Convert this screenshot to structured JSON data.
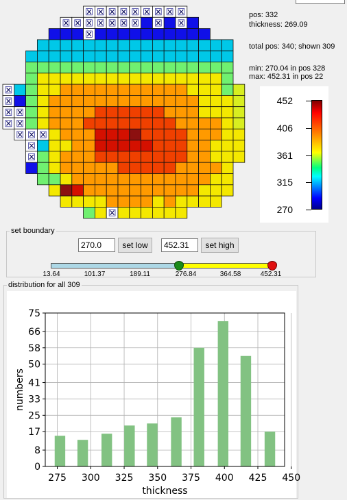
{
  "info": {
    "pos": "pos: 332",
    "thickness": "thickness: 269.09",
    "total": "total pos: 340; shown 309",
    "min": "min: 270.04 in pos 328",
    "max": "max: 452.31 in pos 22"
  },
  "legend": {
    "labels": [
      "452",
      "406",
      "361",
      "315",
      "270"
    ],
    "max": 452.31,
    "min": 270.04
  },
  "wafer": {
    "rows": [
      {
        "start": 7,
        "cells": "XXXXXXXXX"
      },
      {
        "start": 5,
        "cells": "XXXXXXXbXbXb"
      },
      {
        "start": 4,
        "cells": "bbbXbbbbbbbbbb"
      },
      {
        "start": 3,
        "cells": "ccccccccccccccccc"
      },
      {
        "start": 2,
        "cells": "cccccccccccccccccc"
      },
      {
        "start": 2,
        "cells": "gggggggggggggggggg"
      },
      {
        "start": 2,
        "cells": "gyyyyyyyyyyyyyyyyg"
      },
      {
        "start": 0,
        "cells": "XcgyyoooooooooooyyygY"
      },
      {
        "start": 0,
        "cells": "XbgyoooooooooooooyyyY"
      },
      {
        "start": 0,
        "cells": "XXgyoooorrrrrroooyyyY"
      },
      {
        "start": 0,
        "cells": "XXgyooorrrrrrrrooooyY"
      },
      {
        "start": 1,
        "cells": "XXXyoooRRRDrrrroooyy"
      },
      {
        "start": 2,
        "cells": "XcyyooRRRRRrrrooyyy"
      },
      {
        "start": 2,
        "cells": "Xgyooorrrrrrrrooyyy"
      },
      {
        "start": 2,
        "cells": "bgyooooorrrrrooooy"
      },
      {
        "start": 3,
        "cells": "ggyooooooooooooyy"
      },
      {
        "start": 4,
        "cells": "yDRooooooooooyyy"
      },
      {
        "start": 5,
        "cells": "yyyyooooyoyyyy"
      },
      {
        "start": 7,
        "cells": "gyXyyyyyy"
      }
    ]
  },
  "boundary": {
    "legend": "set boundary",
    "low_value": "270.0",
    "set_low": "set low",
    "high_value": "452.31",
    "set_high": "set high",
    "slider_labels": [
      "13.64",
      "101.37",
      "189.11",
      "276.84",
      "364.58",
      "452.31"
    ],
    "low_thumb_fraction": 0.568,
    "high_thumb_fraction": 1.0
  },
  "distribution": {
    "legend": "distribution for all 309"
  },
  "chart_data": {
    "type": "bar",
    "categories": [
      275,
      300,
      325,
      350,
      375,
      400,
      425,
      450
    ],
    "bars": [
      {
        "x": 277,
        "value": 15
      },
      {
        "x": 294,
        "value": 13
      },
      {
        "x": 312,
        "value": 16
      },
      {
        "x": 329,
        "value": 20
      },
      {
        "x": 346,
        "value": 21
      },
      {
        "x": 364,
        "value": 24
      },
      {
        "x": 381,
        "value": 58
      },
      {
        "x": 399,
        "value": 71
      },
      {
        "x": 416,
        "value": 54
      },
      {
        "x": 434,
        "value": 17
      }
    ],
    "xlabel": "thickness",
    "ylabel": "numbers",
    "xticks": [
      "275",
      "300",
      "325",
      "350",
      "375",
      "400",
      "425",
      "450"
    ],
    "yticks": [
      "0",
      "8",
      "17",
      "25",
      "33",
      "41",
      "50",
      "58",
      "66",
      "75"
    ],
    "ytick_values": [
      0,
      8,
      17,
      25,
      33,
      41,
      50,
      58,
      66,
      75
    ],
    "xlim": [
      266,
      445
    ],
    "ylim": [
      0,
      75
    ],
    "bar_color": "#82c282",
    "grid": true
  },
  "colors": {
    "X": "#ffffff",
    "b": "#1010e8",
    "c": "#00c8e8",
    "g": "#70f070",
    "y": "#f4e800",
    "Y": "#d8ee20",
    "o": "#ff9a00",
    "r": "#f04000",
    "R": "#d41000",
    "D": "#8c1010"
  }
}
